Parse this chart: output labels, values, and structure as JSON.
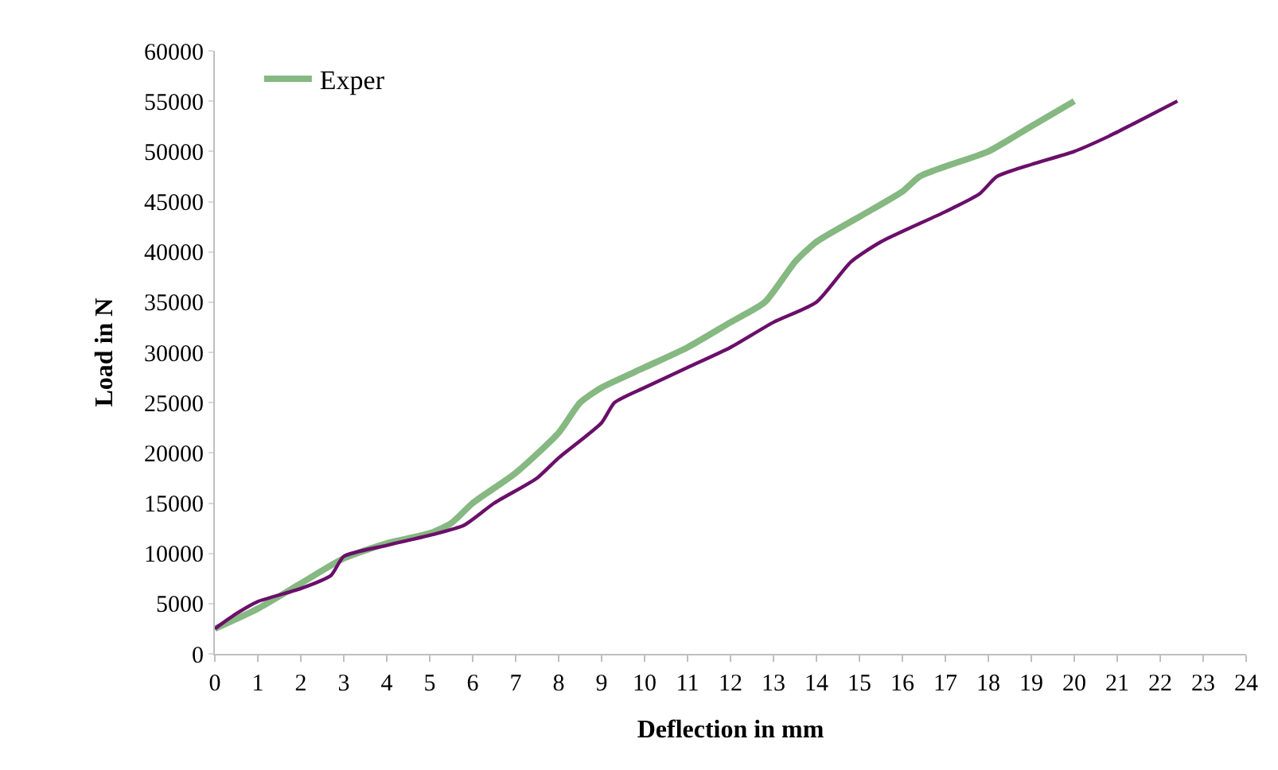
{
  "chart_data": {
    "type": "line",
    "xlabel": "Deflection in mm",
    "ylabel": "Load in N",
    "xlim": [
      0,
      24
    ],
    "xticks": [
      0,
      1,
      2,
      3,
      4,
      5,
      6,
      7,
      8,
      9,
      10,
      11,
      12,
      13,
      14,
      15,
      16,
      17,
      18,
      19,
      20,
      21,
      22,
      23,
      24
    ],
    "ylim": [
      0,
      60000
    ],
    "yticks": [
      0,
      5000,
      10000,
      15000,
      20000,
      25000,
      30000,
      35000,
      40000,
      45000,
      50000,
      55000,
      60000
    ],
    "legend": "top left",
    "marker": "none",
    "line_style": "solid",
    "series": [
      {
        "name": "Exper",
        "color": "#86b882",
        "x": [
          0,
          1,
          2,
          3,
          4,
          5,
          5.5,
          6,
          7,
          8,
          8.5,
          9,
          10,
          11,
          12,
          12.8,
          13.5,
          14,
          15,
          16,
          16.4,
          17,
          18,
          19,
          20
        ],
        "values": [
          2500,
          4500,
          7000,
          9500,
          11000,
          12000,
          13000,
          15000,
          18000,
          22000,
          25000,
          26500,
          28500,
          30500,
          33000,
          35000,
          39000,
          41000,
          43500,
          46000,
          47500,
          48500,
          50000,
          52500,
          55000
        ]
      },
      {
        "color": "#6a0f6a",
        "x": [
          0,
          0.5,
          1,
          2,
          2.7,
          3,
          4,
          5,
          5.8,
          6.5,
          7.5,
          8,
          9,
          9.3,
          10,
          11,
          12,
          13,
          14,
          14.8,
          15.5,
          17,
          17.8,
          18.2,
          19,
          20,
          20.8,
          21.4,
          22.4
        ],
        "values": [
          2500,
          4000,
          5200,
          6500,
          7800,
          9700,
          10800,
          11800,
          12800,
          15000,
          17500,
          19500,
          23000,
          25000,
          26500,
          28500,
          30500,
          33000,
          35000,
          39000,
          41000,
          44000,
          45800,
          47500,
          48700,
          50000,
          51500,
          52800,
          55000
        ]
      }
    ]
  }
}
